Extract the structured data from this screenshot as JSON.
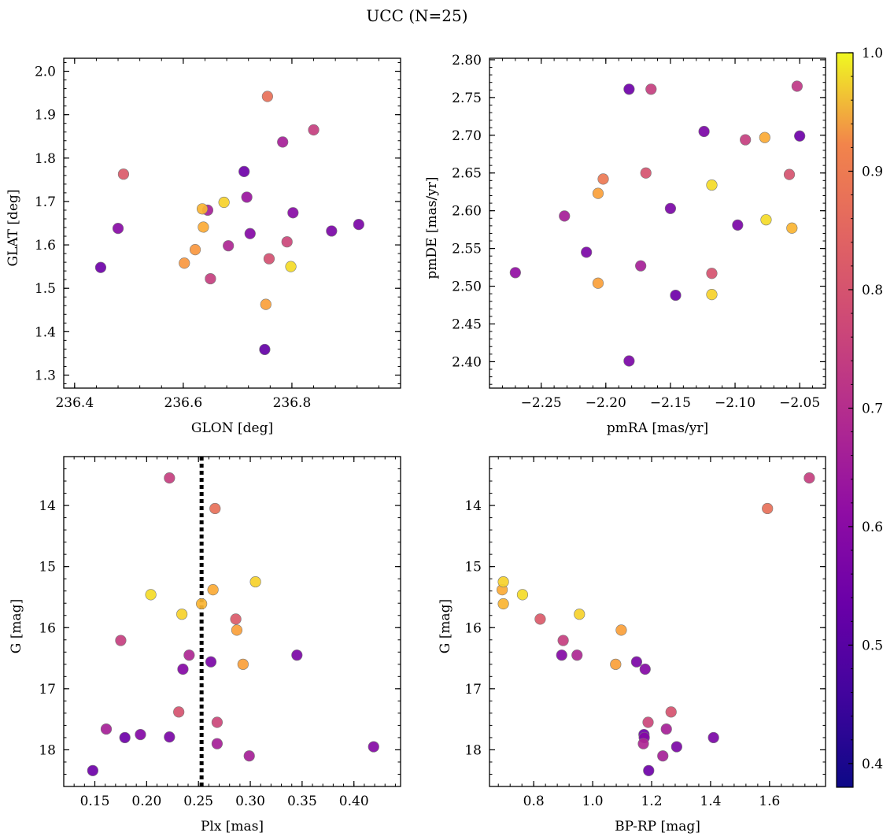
{
  "title": "UCC (N=25)",
  "colormap": {
    "name": "plasma",
    "range": [
      0.38,
      1.0
    ],
    "ticks": [
      0.4,
      0.5,
      0.6,
      0.7,
      0.8,
      0.9,
      1.0
    ],
    "tick_labels": [
      "0.4",
      "0.5",
      "0.6",
      "0.7",
      "0.8",
      "0.9",
      "1.0"
    ]
  },
  "chart_data": [
    {
      "type": "scatter",
      "id": "glon-glat",
      "xlabel": "GLON [deg]",
      "ylabel": "GLAT [deg]",
      "xlim": [
        236.38,
        237.0
      ],
      "ylim": [
        1.27,
        2.03
      ],
      "xticks": [
        236.4,
        236.6,
        236.8
      ],
      "xtick_labels": [
        "236.4",
        "236.6",
        "236.8"
      ],
      "yticks": [
        1.3,
        1.4,
        1.5,
        1.6,
        1.7,
        1.8,
        1.9,
        2.0
      ],
      "ytick_labels": [
        "1.3",
        "1.4",
        "1.5",
        "1.6",
        "1.7",
        "1.8",
        "1.9",
        "2.0"
      ],
      "y_inverted": false,
      "points": [
        {
          "x": 236.755,
          "y": 1.942,
          "c": 0.78
        },
        {
          "x": 236.84,
          "y": 1.865,
          "c": 0.64
        },
        {
          "x": 236.783,
          "y": 1.837,
          "c": 0.55
        },
        {
          "x": 236.49,
          "y": 1.763,
          "c": 0.72
        },
        {
          "x": 236.712,
          "y": 1.769,
          "c": 0.42
        },
        {
          "x": 236.717,
          "y": 1.71,
          "c": 0.52
        },
        {
          "x": 236.675,
          "y": 1.698,
          "c": 0.96
        },
        {
          "x": 236.635,
          "y": 1.683,
          "c": 0.93
        },
        {
          "x": 236.645,
          "y": 1.68,
          "c": 0.55
        },
        {
          "x": 236.802,
          "y": 1.674,
          "c": 0.48
        },
        {
          "x": 236.637,
          "y": 1.641,
          "c": 0.92
        },
        {
          "x": 236.48,
          "y": 1.638,
          "c": 0.48
        },
        {
          "x": 236.923,
          "y": 1.647,
          "c": 0.45
        },
        {
          "x": 236.873,
          "y": 1.632,
          "c": 0.45
        },
        {
          "x": 236.723,
          "y": 1.626,
          "c": 0.47
        },
        {
          "x": 236.791,
          "y": 1.607,
          "c": 0.66
        },
        {
          "x": 236.683,
          "y": 1.598,
          "c": 0.57
        },
        {
          "x": 236.622,
          "y": 1.589,
          "c": 0.88
        },
        {
          "x": 236.758,
          "y": 1.568,
          "c": 0.69
        },
        {
          "x": 236.602,
          "y": 1.558,
          "c": 0.88
        },
        {
          "x": 236.798,
          "y": 1.55,
          "c": 0.97
        },
        {
          "x": 236.448,
          "y": 1.548,
          "c": 0.42
        },
        {
          "x": 236.65,
          "y": 1.522,
          "c": 0.64
        },
        {
          "x": 236.752,
          "y": 1.463,
          "c": 0.9
        },
        {
          "x": 236.75,
          "y": 1.359,
          "c": 0.4
        }
      ]
    },
    {
      "type": "scatter",
      "id": "pmra-pmde",
      "xlabel": "pmRA [mas/yr]",
      "ylabel": "pmDE [mas/yr]",
      "xlim": [
        -2.29,
        -2.03
      ],
      "ylim": [
        2.365,
        2.802
      ],
      "xticks": [
        -2.25,
        -2.2,
        -2.15,
        -2.1,
        -2.05
      ],
      "xtick_labels": [
        "−2.25",
        "−2.20",
        "−2.15",
        "−2.10",
        "−2.05"
      ],
      "yticks": [
        2.4,
        2.45,
        2.5,
        2.55,
        2.6,
        2.65,
        2.7,
        2.75,
        2.8
      ],
      "ytick_labels": [
        "2.40",
        "2.45",
        "2.50",
        "2.55",
        "2.60",
        "2.65",
        "2.70",
        "2.75",
        "2.80"
      ],
      "y_inverted": false,
      "points": [
        {
          "x": -2.052,
          "y": 2.765,
          "c": 0.62
        },
        {
          "x": -2.182,
          "y": 2.761,
          "c": 0.42
        },
        {
          "x": -2.165,
          "y": 2.761,
          "c": 0.64
        },
        {
          "x": -2.124,
          "y": 2.705,
          "c": 0.45
        },
        {
          "x": -2.05,
          "y": 2.699,
          "c": 0.42
        },
        {
          "x": -2.077,
          "y": 2.697,
          "c": 0.92
        },
        {
          "x": -2.092,
          "y": 2.694,
          "c": 0.64
        },
        {
          "x": -2.169,
          "y": 2.65,
          "c": 0.7
        },
        {
          "x": -2.058,
          "y": 2.648,
          "c": 0.7
        },
        {
          "x": -2.202,
          "y": 2.642,
          "c": 0.8
        },
        {
          "x": -2.118,
          "y": 2.634,
          "c": 0.97
        },
        {
          "x": -2.206,
          "y": 2.623,
          "c": 0.9
        },
        {
          "x": -2.15,
          "y": 2.603,
          "c": 0.45
        },
        {
          "x": -2.232,
          "y": 2.593,
          "c": 0.55
        },
        {
          "x": -2.076,
          "y": 2.588,
          "c": 0.97
        },
        {
          "x": -2.098,
          "y": 2.581,
          "c": 0.45
        },
        {
          "x": -2.056,
          "y": 2.577,
          "c": 0.93
        },
        {
          "x": -2.215,
          "y": 2.545,
          "c": 0.45
        },
        {
          "x": -2.173,
          "y": 2.527,
          "c": 0.55
        },
        {
          "x": -2.27,
          "y": 2.518,
          "c": 0.5
        },
        {
          "x": -2.118,
          "y": 2.517,
          "c": 0.7
        },
        {
          "x": -2.206,
          "y": 2.504,
          "c": 0.9
        },
        {
          "x": -2.118,
          "y": 2.489,
          "c": 0.96
        },
        {
          "x": -2.146,
          "y": 2.488,
          "c": 0.42
        },
        {
          "x": -2.182,
          "y": 2.401,
          "c": 0.45
        }
      ]
    },
    {
      "type": "scatter",
      "id": "plx-g",
      "xlabel": "Plx [mas]",
      "ylabel": "G [mag]",
      "xlim": [
        0.12,
        0.445
      ],
      "ylim": [
        13.2,
        18.6
      ],
      "xticks": [
        0.15,
        0.2,
        0.25,
        0.3,
        0.35,
        0.4
      ],
      "xtick_labels": [
        "0.15",
        "0.20",
        "0.25",
        "0.30",
        "0.35",
        "0.40"
      ],
      "yticks": [
        14,
        15,
        16,
        17,
        18
      ],
      "ytick_labels": [
        "14",
        "15",
        "16",
        "17",
        "18"
      ],
      "y_inverted": true,
      "vline": {
        "x": 0.253,
        "style": "dotted",
        "color": "#000000"
      },
      "points": [
        {
          "x": 0.222,
          "y": 13.55,
          "c": 0.64
        },
        {
          "x": 0.266,
          "y": 14.05,
          "c": 0.78
        },
        {
          "x": 0.305,
          "y": 15.25,
          "c": 0.96
        },
        {
          "x": 0.264,
          "y": 15.38,
          "c": 0.92
        },
        {
          "x": 0.204,
          "y": 15.46,
          "c": 0.97
        },
        {
          "x": 0.253,
          "y": 15.61,
          "c": 0.93
        },
        {
          "x": 0.234,
          "y": 15.78,
          "c": 0.96
        },
        {
          "x": 0.286,
          "y": 15.86,
          "c": 0.72
        },
        {
          "x": 0.287,
          "y": 16.04,
          "c": 0.9
        },
        {
          "x": 0.175,
          "y": 16.21,
          "c": 0.64
        },
        {
          "x": 0.241,
          "y": 16.45,
          "c": 0.57
        },
        {
          "x": 0.345,
          "y": 16.45,
          "c": 0.45
        },
        {
          "x": 0.262,
          "y": 16.56,
          "c": 0.45
        },
        {
          "x": 0.293,
          "y": 16.6,
          "c": 0.9
        },
        {
          "x": 0.235,
          "y": 16.68,
          "c": 0.47
        },
        {
          "x": 0.231,
          "y": 17.38,
          "c": 0.7
        },
        {
          "x": 0.268,
          "y": 17.55,
          "c": 0.66
        },
        {
          "x": 0.161,
          "y": 17.66,
          "c": 0.55
        },
        {
          "x": 0.194,
          "y": 17.75,
          "c": 0.47
        },
        {
          "x": 0.179,
          "y": 17.8,
          "c": 0.42
        },
        {
          "x": 0.222,
          "y": 17.79,
          "c": 0.45
        },
        {
          "x": 0.268,
          "y": 17.9,
          "c": 0.55
        },
        {
          "x": 0.419,
          "y": 17.95,
          "c": 0.47
        },
        {
          "x": 0.299,
          "y": 18.1,
          "c": 0.55
        },
        {
          "x": 0.148,
          "y": 18.34,
          "c": 0.42
        }
      ]
    },
    {
      "type": "scatter",
      "id": "bprp-g",
      "xlabel": "BP-RP [mag]",
      "ylabel": "G [mag]",
      "xlim": [
        0.65,
        1.79
      ],
      "ylim": [
        13.2,
        18.6
      ],
      "xticks": [
        0.8,
        1.0,
        1.2,
        1.4,
        1.6
      ],
      "xtick_labels": [
        "0.8",
        "1.0",
        "1.2",
        "1.4",
        "1.6"
      ],
      "yticks": [
        14,
        15,
        16,
        17,
        18
      ],
      "ytick_labels": [
        "14",
        "15",
        "16",
        "17",
        "18"
      ],
      "y_inverted": true,
      "points": [
        {
          "x": 1.735,
          "y": 13.55,
          "c": 0.64
        },
        {
          "x": 1.593,
          "y": 14.05,
          "c": 0.78
        },
        {
          "x": 0.697,
          "y": 15.25,
          "c": 0.96
        },
        {
          "x": 0.693,
          "y": 15.38,
          "c": 0.92
        },
        {
          "x": 0.762,
          "y": 15.46,
          "c": 0.97
        },
        {
          "x": 0.697,
          "y": 15.61,
          "c": 0.93
        },
        {
          "x": 0.955,
          "y": 15.78,
          "c": 0.96
        },
        {
          "x": 0.822,
          "y": 15.86,
          "c": 0.72
        },
        {
          "x": 1.097,
          "y": 16.04,
          "c": 0.9
        },
        {
          "x": 0.9,
          "y": 16.21,
          "c": 0.64
        },
        {
          "x": 0.895,
          "y": 16.45,
          "c": 0.47
        },
        {
          "x": 0.947,
          "y": 16.45,
          "c": 0.57
        },
        {
          "x": 1.149,
          "y": 16.56,
          "c": 0.45
        },
        {
          "x": 1.078,
          "y": 16.6,
          "c": 0.9
        },
        {
          "x": 1.178,
          "y": 16.68,
          "c": 0.47
        },
        {
          "x": 1.266,
          "y": 17.38,
          "c": 0.7
        },
        {
          "x": 1.188,
          "y": 17.55,
          "c": 0.66
        },
        {
          "x": 1.25,
          "y": 17.66,
          "c": 0.55
        },
        {
          "x": 1.174,
          "y": 17.75,
          "c": 0.42
        },
        {
          "x": 1.175,
          "y": 17.8,
          "c": 0.47
        },
        {
          "x": 1.41,
          "y": 17.8,
          "c": 0.45
        },
        {
          "x": 1.172,
          "y": 17.9,
          "c": 0.57
        },
        {
          "x": 1.285,
          "y": 17.95,
          "c": 0.45
        },
        {
          "x": 1.238,
          "y": 18.1,
          "c": 0.55
        },
        {
          "x": 1.19,
          "y": 18.34,
          "c": 0.42
        }
      ]
    }
  ]
}
